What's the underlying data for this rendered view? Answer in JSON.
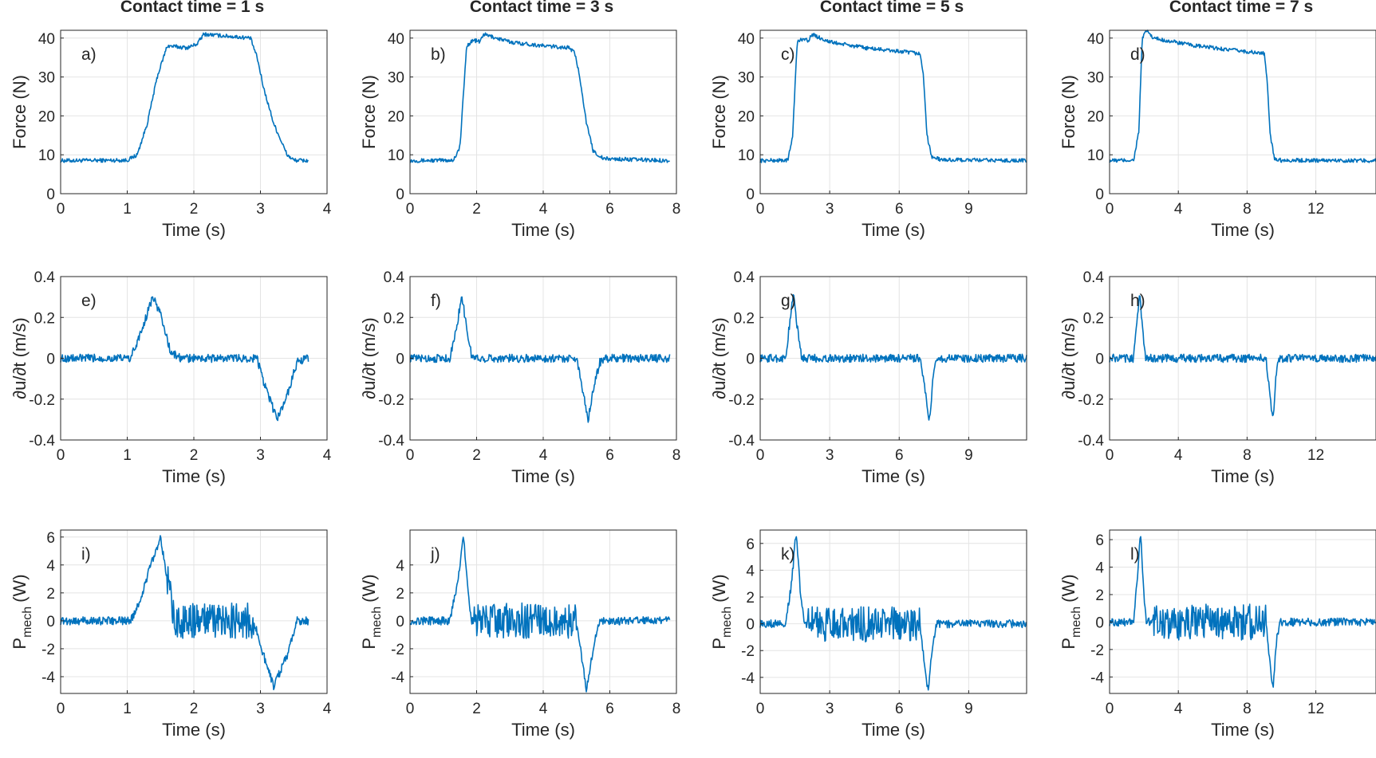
{
  "chart_data": {
    "type": "line",
    "color": "#0072BD",
    "grid": true,
    "column_titles": [
      "Contact time = 1 s",
      "Contact time = 3 s",
      "Contact time = 5 s",
      "Contact time = 7 s"
    ],
    "row_ylabels": [
      "Force (N)",
      "∂u/∂t (m/s)",
      "P",
      "mech",
      "(W)"
    ],
    "xlabel": "Time (s)",
    "panels": [
      {
        "label": "a)",
        "xlim": [
          0,
          4
        ],
        "xticks": [
          0,
          1,
          2,
          3,
          4
        ],
        "ylim": [
          0,
          42
        ],
        "yticks": [
          0,
          10,
          20,
          30,
          40
        ],
        "series": [
          [
            0,
            8.5
          ],
          [
            1.0,
            8.6
          ],
          [
            1.15,
            10
          ],
          [
            1.3,
            18
          ],
          [
            1.45,
            30
          ],
          [
            1.6,
            38
          ],
          [
            1.9,
            37.5
          ],
          [
            2.05,
            38.5
          ],
          [
            2.15,
            41
          ],
          [
            2.5,
            40.5
          ],
          [
            2.85,
            40
          ],
          [
            2.95,
            35
          ],
          [
            3.05,
            27
          ],
          [
            3.2,
            18
          ],
          [
            3.4,
            10
          ],
          [
            3.5,
            8.6
          ],
          [
            3.72,
            8.5
          ]
        ]
      },
      {
        "label": "b)",
        "xlim": [
          0,
          8
        ],
        "xticks": [
          0,
          2,
          4,
          6,
          8
        ],
        "ylim": [
          0,
          42
        ],
        "yticks": [
          0,
          10,
          20,
          30,
          40
        ],
        "series": [
          [
            0,
            8.5
          ],
          [
            1.3,
            8.6
          ],
          [
            1.5,
            12
          ],
          [
            1.7,
            38
          ],
          [
            1.9,
            39.5
          ],
          [
            2.1,
            39
          ],
          [
            2.2,
            41
          ],
          [
            3,
            39
          ],
          [
            4,
            38
          ],
          [
            4.8,
            37.5
          ],
          [
            4.95,
            36
          ],
          [
            5.1,
            30
          ],
          [
            5.3,
            18
          ],
          [
            5.5,
            11
          ],
          [
            5.8,
            9
          ],
          [
            7.8,
            8.5
          ]
        ]
      },
      {
        "label": "c)",
        "xlim": [
          0,
          11.5
        ],
        "xticks": [
          0,
          3,
          6,
          9
        ],
        "ylim": [
          0,
          42
        ],
        "yticks": [
          0,
          10,
          20,
          30,
          40
        ],
        "series": [
          [
            0,
            8.5
          ],
          [
            1.2,
            8.6
          ],
          [
            1.4,
            15
          ],
          [
            1.6,
            39
          ],
          [
            1.9,
            40
          ],
          [
            2.1,
            39
          ],
          [
            2.2,
            41
          ],
          [
            3,
            39
          ],
          [
            4.5,
            37.5
          ],
          [
            6.9,
            36
          ],
          [
            7.05,
            30
          ],
          [
            7.2,
            15
          ],
          [
            7.4,
            9.5
          ],
          [
            7.8,
            8.7
          ],
          [
            11.5,
            8.5
          ]
        ]
      },
      {
        "label": "d)",
        "xlim": [
          0,
          15.5
        ],
        "xticks": [
          0,
          4,
          8,
          12
        ],
        "ylim": [
          0,
          42
        ],
        "yticks": [
          0,
          10,
          20,
          30,
          40
        ],
        "series": [
          [
            0,
            8.5
          ],
          [
            1.4,
            8.6
          ],
          [
            1.7,
            16
          ],
          [
            1.9,
            40
          ],
          [
            2.2,
            42
          ],
          [
            2.5,
            40
          ],
          [
            5,
            38
          ],
          [
            9,
            36
          ],
          [
            9.15,
            30
          ],
          [
            9.35,
            15
          ],
          [
            9.6,
            9
          ],
          [
            10,
            8.6
          ],
          [
            15.5,
            8.5
          ]
        ]
      },
      {
        "label": "e)",
        "xlim": [
          0,
          4
        ],
        "xticks": [
          0,
          1,
          2,
          3,
          4
        ],
        "ylim": [
          -0.4,
          0.4
        ],
        "yticks": [
          -0.4,
          -0.2,
          0,
          0.2,
          0.4
        ],
        "series": [
          [
            0,
            0
          ],
          [
            1.05,
            0
          ],
          [
            1.2,
            0.12
          ],
          [
            1.38,
            0.3
          ],
          [
            1.5,
            0.22
          ],
          [
            1.65,
            0.03
          ],
          [
            1.8,
            0
          ],
          [
            2.95,
            0
          ],
          [
            3.05,
            -0.12
          ],
          [
            3.25,
            -0.3
          ],
          [
            3.4,
            -0.18
          ],
          [
            3.55,
            -0.02
          ],
          [
            3.72,
            0
          ]
        ]
      },
      {
        "label": "f)",
        "xlim": [
          0,
          8
        ],
        "xticks": [
          0,
          2,
          4,
          6,
          8
        ],
        "ylim": [
          -0.4,
          0.4
        ],
        "yticks": [
          -0.4,
          -0.2,
          0,
          0.2,
          0.4
        ],
        "series": [
          [
            0,
            0
          ],
          [
            1.2,
            0
          ],
          [
            1.4,
            0.15
          ],
          [
            1.55,
            0.31
          ],
          [
            1.7,
            0.15
          ],
          [
            1.85,
            0.01
          ],
          [
            2,
            0
          ],
          [
            5,
            0
          ],
          [
            5.15,
            -0.12
          ],
          [
            5.35,
            -0.3
          ],
          [
            5.5,
            -0.15
          ],
          [
            5.7,
            -0.02
          ],
          [
            5.9,
            0
          ],
          [
            7.8,
            0
          ]
        ]
      },
      {
        "label": "g)",
        "xlim": [
          0,
          11.5
        ],
        "xticks": [
          0,
          3,
          6,
          9
        ],
        "ylim": [
          -0.4,
          0.4
        ],
        "yticks": [
          -0.4,
          -0.2,
          0,
          0.2,
          0.4
        ],
        "series": [
          [
            0,
            0
          ],
          [
            1.1,
            0
          ],
          [
            1.3,
            0.2
          ],
          [
            1.45,
            0.32
          ],
          [
            1.6,
            0.15
          ],
          [
            1.8,
            0
          ],
          [
            6.9,
            0
          ],
          [
            7.1,
            -0.15
          ],
          [
            7.3,
            -0.31
          ],
          [
            7.45,
            -0.12
          ],
          [
            7.6,
            0
          ],
          [
            11.5,
            0
          ]
        ]
      },
      {
        "label": "h)",
        "xlim": [
          0,
          15.5
        ],
        "xticks": [
          0,
          4,
          8,
          12
        ],
        "ylim": [
          -0.4,
          0.4
        ],
        "yticks": [
          -0.4,
          -0.2,
          0,
          0.2,
          0.4
        ],
        "series": [
          [
            0,
            0
          ],
          [
            1.4,
            0
          ],
          [
            1.6,
            0.2
          ],
          [
            1.75,
            0.32
          ],
          [
            1.9,
            0.15
          ],
          [
            2.1,
            0
          ],
          [
            9.1,
            0
          ],
          [
            9.3,
            -0.15
          ],
          [
            9.5,
            -0.31
          ],
          [
            9.65,
            -0.12
          ],
          [
            9.8,
            0
          ],
          [
            15.5,
            0
          ]
        ]
      },
      {
        "label": "i)",
        "xlim": [
          0,
          4
        ],
        "xticks": [
          0,
          1,
          2,
          3,
          4
        ],
        "ylim": [
          -5.2,
          6.5
        ],
        "yticks": [
          -4,
          -2,
          0,
          2,
          4,
          6
        ],
        "series": [
          [
            0,
            0
          ],
          [
            1.05,
            0
          ],
          [
            1.2,
            1.5
          ],
          [
            1.35,
            4
          ],
          [
            1.5,
            6
          ],
          [
            1.6,
            3
          ],
          [
            1.7,
            0
          ],
          [
            2.9,
            0
          ],
          [
            3.05,
            -2.5
          ],
          [
            3.2,
            -4.7
          ],
          [
            3.4,
            -2.5
          ],
          [
            3.55,
            0
          ],
          [
            3.72,
            0
          ]
        ]
      },
      {
        "label": "j)",
        "xlim": [
          0,
          8
        ],
        "xticks": [
          0,
          2,
          4,
          6,
          8
        ],
        "ylim": [
          -5.2,
          6.5
        ],
        "yticks": [
          -4,
          -2,
          0,
          2,
          4
        ],
        "series": [
          [
            0,
            0
          ],
          [
            1.2,
            0
          ],
          [
            1.45,
            3
          ],
          [
            1.6,
            6.2
          ],
          [
            1.75,
            2
          ],
          [
            1.85,
            0
          ],
          [
            5,
            0
          ],
          [
            5.15,
            -2.5
          ],
          [
            5.3,
            -5
          ],
          [
            5.5,
            -2
          ],
          [
            5.7,
            0
          ],
          [
            7.8,
            0
          ]
        ]
      },
      {
        "label": "k)",
        "xlim": [
          0,
          11.5
        ],
        "xticks": [
          0,
          3,
          6,
          9
        ],
        "ylim": [
          -5.2,
          7
        ],
        "yticks": [
          -4,
          -2,
          0,
          2,
          4,
          6
        ],
        "series": [
          [
            0,
            0
          ],
          [
            1.1,
            0
          ],
          [
            1.35,
            3
          ],
          [
            1.55,
            6.8
          ],
          [
            1.75,
            2
          ],
          [
            1.9,
            0
          ],
          [
            6.9,
            0
          ],
          [
            7.05,
            -2.5
          ],
          [
            7.25,
            -5.1
          ],
          [
            7.45,
            -1.5
          ],
          [
            7.6,
            0
          ],
          [
            11.5,
            0
          ]
        ]
      },
      {
        "label": "l)",
        "xlim": [
          0,
          15.5
        ],
        "xticks": [
          0,
          4,
          8,
          12
        ],
        "ylim": [
          -5.2,
          6.7
        ],
        "yticks": [
          -4,
          -2,
          0,
          2,
          4,
          6
        ],
        "series": [
          [
            0,
            0
          ],
          [
            1.4,
            0
          ],
          [
            1.6,
            3
          ],
          [
            1.8,
            6.6
          ],
          [
            2,
            2
          ],
          [
            2.15,
            0
          ],
          [
            9.1,
            0
          ],
          [
            9.3,
            -2.5
          ],
          [
            9.5,
            -5
          ],
          [
            9.7,
            -1.5
          ],
          [
            9.9,
            0
          ],
          [
            15.5,
            0
          ]
        ]
      }
    ]
  }
}
